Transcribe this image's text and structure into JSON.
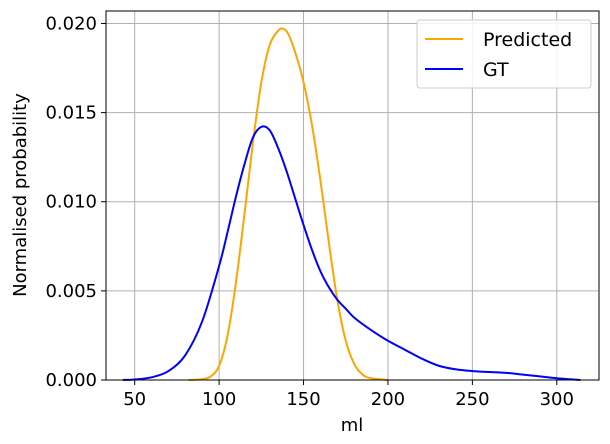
{
  "chart_data": {
    "type": "line",
    "xlabel": "ml",
    "ylabel": "Normalised probability",
    "xlim": [
      33,
      325
    ],
    "ylim": [
      0,
      0.0207
    ],
    "grid": true,
    "legend_placement": "top-right",
    "x_ticks": [
      50,
      100,
      150,
      200,
      250,
      300
    ],
    "x_tick_labels": [
      "50",
      "100",
      "150",
      "200",
      "250",
      "300"
    ],
    "y_ticks": [
      0,
      0.005,
      0.01,
      0.015,
      0.02
    ],
    "y_tick_labels": [
      "0.000",
      "0.005",
      "0.010",
      "0.015",
      "0.020"
    ],
    "series": [
      {
        "name": "Predicted",
        "color": "#ffa500",
        "points": [
          [
            82,
            0.0
          ],
          [
            90,
            5e-05
          ],
          [
            95,
            0.0002
          ],
          [
            100,
            0.0008
          ],
          [
            105,
            0.0025
          ],
          [
            110,
            0.0055
          ],
          [
            115,
            0.0093
          ],
          [
            120,
            0.0133
          ],
          [
            125,
            0.0167
          ],
          [
            130,
            0.0188
          ],
          [
            135,
            0.0196
          ],
          [
            138,
            0.0197
          ],
          [
            141,
            0.0194
          ],
          [
            145,
            0.0184
          ],
          [
            150,
            0.0167
          ],
          [
            155,
            0.0143
          ],
          [
            160,
            0.0112
          ],
          [
            165,
            0.0077
          ],
          [
            170,
            0.0045
          ],
          [
            175,
            0.0022
          ],
          [
            180,
            0.0009
          ],
          [
            185,
            0.0003
          ],
          [
            190,
            0.0001
          ],
          [
            200,
            0.0
          ]
        ]
      },
      {
        "name": "GT",
        "color": "#0000ff",
        "points": [
          [
            43,
            0.0
          ],
          [
            50,
            3e-05
          ],
          [
            60,
            0.00015
          ],
          [
            70,
            0.0005
          ],
          [
            80,
            0.0014
          ],
          [
            90,
            0.0033
          ],
          [
            100,
            0.0064
          ],
          [
            105,
            0.0083
          ],
          [
            110,
            0.0103
          ],
          [
            115,
            0.0121
          ],
          [
            120,
            0.0136
          ],
          [
            125,
            0.0142
          ],
          [
            130,
            0.014
          ],
          [
            135,
            0.013
          ],
          [
            140,
            0.0117
          ],
          [
            145,
            0.0102
          ],
          [
            150,
            0.0087
          ],
          [
            155,
            0.0073
          ],
          [
            160,
            0.0061
          ],
          [
            165,
            0.0052
          ],
          [
            170,
            0.0045
          ],
          [
            175,
            0.004
          ],
          [
            180,
            0.0035
          ],
          [
            190,
            0.0028
          ],
          [
            200,
            0.0022
          ],
          [
            210,
            0.0017
          ],
          [
            220,
            0.0012
          ],
          [
            230,
            0.0008
          ],
          [
            240,
            0.0006
          ],
          [
            250,
            0.0005
          ],
          [
            260,
            0.00045
          ],
          [
            270,
            0.0004
          ],
          [
            280,
            0.0003
          ],
          [
            290,
            0.0002
          ],
          [
            300,
            0.0001
          ],
          [
            314,
            0.0
          ]
        ]
      }
    ]
  }
}
